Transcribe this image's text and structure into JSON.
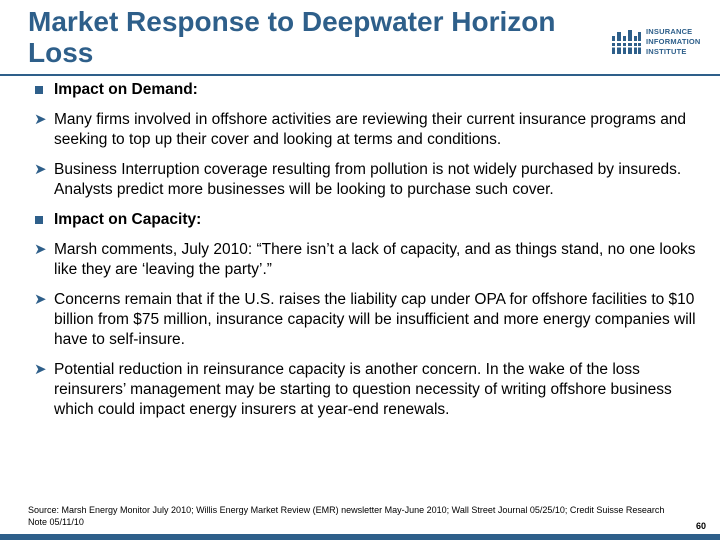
{
  "slide": {
    "title": "Market Response to Deepwater Horizon Loss",
    "logo": {
      "line1": "INSURANCE",
      "line2": "INFORMATION",
      "line3": "INSTITUTE"
    },
    "items": [
      {
        "type": "heading",
        "text": "Impact on Demand:"
      },
      {
        "type": "bullet",
        "text": "Many firms involved in offshore activities are reviewing their current insurance programs and seeking to top up their cover and looking at terms and conditions."
      },
      {
        "type": "bullet",
        "text": "Business Interruption coverage resulting from pollution is not widely purchased by insureds. Analysts predict more businesses will be looking to purchase such cover."
      },
      {
        "type": "heading",
        "text": "Impact on Capacity:"
      },
      {
        "type": "bullet",
        "text": "Marsh comments, July 2010: “There isn’t a lack of capacity, and as things stand, no one looks like they are ‘leaving the party’.”"
      },
      {
        "type": "bullet",
        "text": "Concerns remain that if the U.S. raises the liability cap under OPA for offshore facilities to $10 billion from $75 million, insurance capacity will be insufficient and more energy companies will have to self-insure."
      },
      {
        "type": "bullet",
        "text": "Potential reduction in reinsurance capacity is another concern. In the wake of the loss reinsurers’ management may be starting to question necessity of writing offshore business which could impact energy insurers at year-end renewals."
      }
    ],
    "source": "Source: Marsh Energy Monitor July 2010; Willis Energy Market Review (EMR) newsletter May-June 2010; Wall Street Journal 05/25/10; Credit Suisse Research Note 05/11/10",
    "page_number": "60",
    "accent_color": "#2e5f8a"
  }
}
